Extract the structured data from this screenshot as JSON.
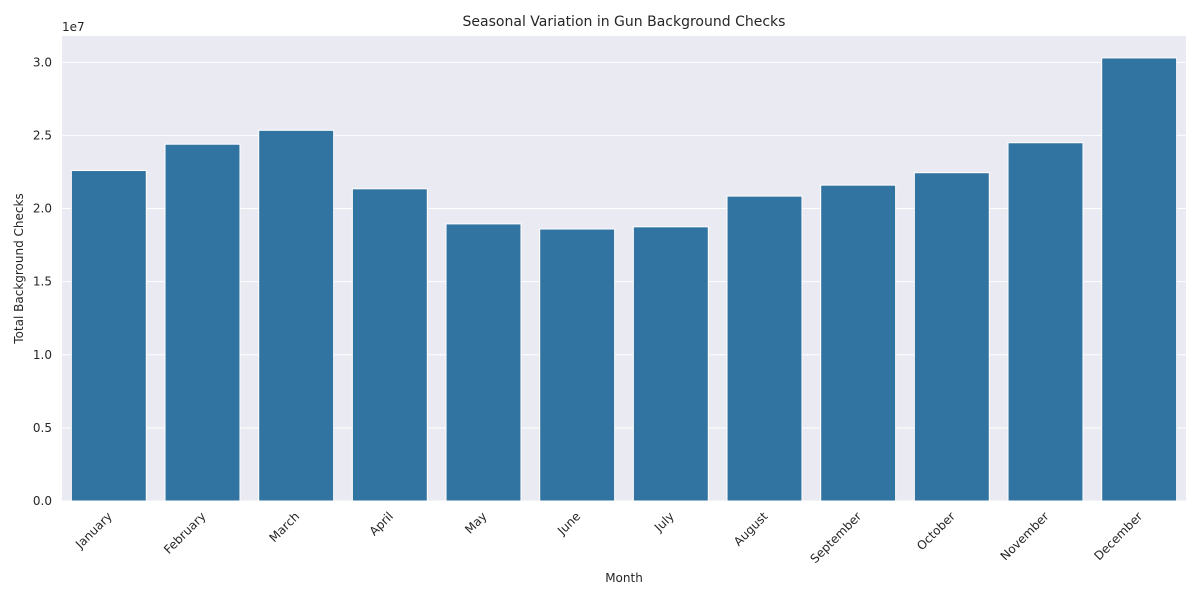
{
  "chart_data": {
    "type": "bar",
    "title": "Seasonal Variation in Gun Background Checks",
    "xlabel": "Month",
    "ylabel": "Total Background Checks",
    "y_offset_label": "1e7",
    "categories": [
      "January",
      "February",
      "March",
      "April",
      "May",
      "June",
      "July",
      "August",
      "September",
      "October",
      "November",
      "December"
    ],
    "values": [
      22600000,
      24400000,
      25350000,
      21350000,
      18950000,
      18600000,
      18750000,
      20850000,
      21600000,
      22450000,
      24500000,
      30300000
    ],
    "ylim": [
      0,
      31800000
    ],
    "yticks": [
      0,
      5000000,
      10000000,
      15000000,
      20000000,
      25000000,
      30000000
    ],
    "ytick_labels": [
      "0.0",
      "0.5",
      "1.0",
      "1.5",
      "2.0",
      "2.5",
      "3.0"
    ],
    "grid": true,
    "bar_color": "#3274a1",
    "plot_background": "#eaeaf2",
    "grid_color": "#ffffff"
  }
}
